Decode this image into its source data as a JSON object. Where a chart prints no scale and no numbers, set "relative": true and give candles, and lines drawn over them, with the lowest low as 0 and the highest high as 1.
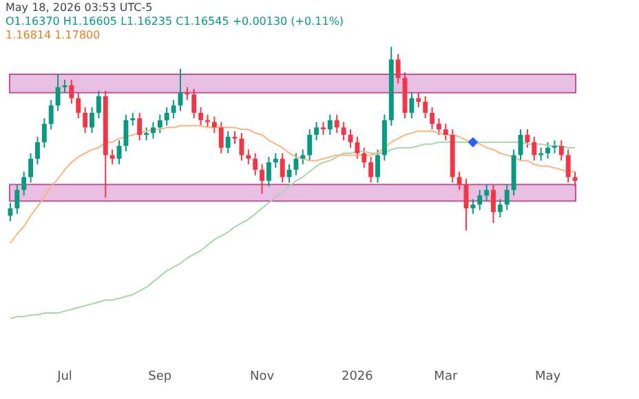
{
  "chart_data": {
    "type": "candlestick",
    "relative": true,
    "categories": [
      null,
      null,
      null,
      null,
      null,
      null,
      null,
      null,
      "Jul",
      null,
      null,
      null,
      null,
      null,
      null,
      null,
      null,
      null,
      null,
      null,
      null,
      null,
      "Sep",
      null,
      null,
      null,
      null,
      null,
      null,
      null,
      null,
      null,
      null,
      null,
      null,
      null,
      null,
      "Nov",
      null,
      null,
      null,
      null,
      null,
      null,
      null,
      null,
      null,
      null,
      null,
      null,
      null,
      "2026",
      null,
      null,
      null,
      null,
      null,
      null,
      null,
      null,
      null,
      null,
      null,
      null,
      "Mar",
      null,
      null,
      null,
      null,
      null,
      null,
      null,
      null,
      null,
      null,
      null,
      null,
      null,
      null,
      "May",
      null,
      null,
      null,
      null
    ],
    "ohlc": [
      [
        0.08,
        0.15,
        0.05,
        0.12
      ],
      [
        0.12,
        0.25,
        0.09,
        0.22
      ],
      [
        0.22,
        0.32,
        0.19,
        0.29
      ],
      [
        0.29,
        0.42,
        0.26,
        0.39
      ],
      [
        0.39,
        0.51,
        0.36,
        0.48
      ],
      [
        0.48,
        0.61,
        0.45,
        0.58
      ],
      [
        0.58,
        0.71,
        0.55,
        0.68
      ],
      [
        0.68,
        0.85,
        0.65,
        0.78
      ],
      [
        0.78,
        0.82,
        0.75,
        0.79
      ],
      [
        0.79,
        0.82,
        0.69,
        0.72
      ],
      [
        0.72,
        0.75,
        0.61,
        0.64
      ],
      [
        0.64,
        0.67,
        0.53,
        0.56
      ],
      [
        0.56,
        0.67,
        0.53,
        0.64
      ],
      [
        0.64,
        0.76,
        0.61,
        0.73
      ],
      [
        0.73,
        0.76,
        0.18,
        0.41
      ],
      [
        0.41,
        0.44,
        0.36,
        0.39
      ],
      [
        0.39,
        0.49,
        0.36,
        0.46
      ],
      [
        0.46,
        0.63,
        0.43,
        0.6
      ],
      [
        0.6,
        0.64,
        0.57,
        0.61
      ],
      [
        0.61,
        0.64,
        0.49,
        0.52
      ],
      [
        0.52,
        0.56,
        0.49,
        0.53
      ],
      [
        0.53,
        0.59,
        0.5,
        0.56
      ],
      [
        0.56,
        0.63,
        0.53,
        0.6
      ],
      [
        0.6,
        0.67,
        0.57,
        0.64
      ],
      [
        0.64,
        0.71,
        0.61,
        0.68
      ],
      [
        0.68,
        0.88,
        0.65,
        0.75
      ],
      [
        0.75,
        0.78,
        0.71,
        0.74
      ],
      [
        0.74,
        0.77,
        0.61,
        0.64
      ],
      [
        0.64,
        0.67,
        0.57,
        0.6
      ],
      [
        0.6,
        0.63,
        0.56,
        0.59
      ],
      [
        0.59,
        0.62,
        0.53,
        0.56
      ],
      [
        0.56,
        0.59,
        0.42,
        0.45
      ],
      [
        0.45,
        0.54,
        0.42,
        0.51
      ],
      [
        0.51,
        0.54,
        0.47,
        0.5
      ],
      [
        0.5,
        0.53,
        0.38,
        0.41
      ],
      [
        0.41,
        0.44,
        0.36,
        0.39
      ],
      [
        0.39,
        0.42,
        0.3,
        0.33
      ],
      [
        0.33,
        0.36,
        0.2,
        0.27
      ],
      [
        0.27,
        0.4,
        0.24,
        0.37
      ],
      [
        0.37,
        0.42,
        0.34,
        0.39
      ],
      [
        0.39,
        0.42,
        0.26,
        0.29
      ],
      [
        0.29,
        0.36,
        0.26,
        0.33
      ],
      [
        0.33,
        0.42,
        0.3,
        0.39
      ],
      [
        0.39,
        0.44,
        0.36,
        0.41
      ],
      [
        0.41,
        0.55,
        0.38,
        0.52
      ],
      [
        0.52,
        0.59,
        0.49,
        0.56
      ],
      [
        0.56,
        0.59,
        0.52,
        0.55
      ],
      [
        0.55,
        0.63,
        0.52,
        0.6
      ],
      [
        0.6,
        0.63,
        0.53,
        0.56
      ],
      [
        0.56,
        0.59,
        0.49,
        0.52
      ],
      [
        0.52,
        0.55,
        0.45,
        0.48
      ],
      [
        0.48,
        0.51,
        0.39,
        0.42
      ],
      [
        0.42,
        0.45,
        0.34,
        0.37
      ],
      [
        0.37,
        0.4,
        0.26,
        0.29
      ],
      [
        0.29,
        0.44,
        0.26,
        0.41
      ],
      [
        0.41,
        0.63,
        0.38,
        0.6
      ],
      [
        0.6,
        1.0,
        0.57,
        0.93
      ],
      [
        0.93,
        0.96,
        0.8,
        0.83
      ],
      [
        0.83,
        0.86,
        0.61,
        0.64
      ],
      [
        0.64,
        0.75,
        0.61,
        0.72
      ],
      [
        0.72,
        0.75,
        0.67,
        0.7
      ],
      [
        0.7,
        0.73,
        0.61,
        0.64
      ],
      [
        0.64,
        0.67,
        0.55,
        0.58
      ],
      [
        0.58,
        0.61,
        0.52,
        0.55
      ],
      [
        0.55,
        0.58,
        0.49,
        0.52
      ],
      [
        0.52,
        0.55,
        0.26,
        0.29
      ],
      [
        0.29,
        0.32,
        0.22,
        0.25
      ],
      [
        0.25,
        0.28,
        0.0,
        0.12
      ],
      [
        0.12,
        0.17,
        0.09,
        0.14
      ],
      [
        0.14,
        0.22,
        0.11,
        0.19
      ],
      [
        0.19,
        0.25,
        0.16,
        0.22
      ],
      [
        0.22,
        0.25,
        0.04,
        0.1
      ],
      [
        0.1,
        0.17,
        0.07,
        0.14
      ],
      [
        0.14,
        0.25,
        0.11,
        0.22
      ],
      [
        0.22,
        0.44,
        0.19,
        0.41
      ],
      [
        0.41,
        0.55,
        0.38,
        0.52
      ],
      [
        0.52,
        0.55,
        0.45,
        0.48
      ],
      [
        0.48,
        0.51,
        0.38,
        0.41
      ],
      [
        0.41,
        0.45,
        0.38,
        0.42
      ],
      [
        0.42,
        0.48,
        0.39,
        0.45
      ],
      [
        0.45,
        0.49,
        0.42,
        0.46
      ],
      [
        0.46,
        0.49,
        0.38,
        0.41
      ],
      [
        0.41,
        0.44,
        0.26,
        0.29
      ],
      [
        0.29,
        0.32,
        0.24,
        0.27
      ]
    ],
    "series": [
      {
        "type": "line",
        "color": "#ffb27a",
        "values": [
          -0.07,
          -0.02,
          0.02,
          0.08,
          0.13,
          0.18,
          0.24,
          0.28,
          0.33,
          0.37,
          0.4,
          0.42,
          0.44,
          0.45,
          0.48,
          0.48,
          0.5,
          0.51,
          0.52,
          0.53,
          0.54,
          0.55,
          0.55,
          0.56,
          0.56,
          0.57,
          0.57,
          0.57,
          0.57,
          0.56,
          0.56,
          0.56,
          0.56,
          0.56,
          0.55,
          0.55,
          0.53,
          0.52,
          0.49,
          0.47,
          0.45,
          0.42,
          0.4,
          0.39,
          0.38,
          0.38,
          0.39,
          0.4,
          0.41,
          0.41,
          0.41,
          0.41,
          0.41,
          0.41,
          0.42,
          0.45,
          0.48,
          0.5,
          0.52,
          0.53,
          0.54,
          0.54,
          0.54,
          0.53,
          0.52,
          0.52,
          0.51,
          0.49,
          0.48,
          0.47,
          0.45,
          0.44,
          0.42,
          0.41,
          0.4,
          0.38,
          0.38,
          0.36,
          0.35,
          0.35,
          0.34,
          0.33,
          0.32,
          0.32
        ]
      },
      {
        "type": "line",
        "color": "#a5d6a7",
        "values": [
          -0.48,
          -0.47,
          -0.47,
          -0.46,
          -0.46,
          -0.45,
          -0.45,
          -0.45,
          -0.44,
          -0.43,
          -0.42,
          -0.41,
          -0.4,
          -0.39,
          -0.38,
          -0.38,
          -0.37,
          -0.36,
          -0.35,
          -0.33,
          -0.31,
          -0.28,
          -0.25,
          -0.22,
          -0.2,
          -0.18,
          -0.15,
          -0.13,
          -0.11,
          -0.08,
          -0.05,
          -0.03,
          -0.01,
          0.02,
          0.04,
          0.06,
          0.09,
          0.12,
          0.15,
          0.18,
          0.21,
          0.24,
          0.27,
          0.29,
          0.32,
          0.35,
          0.37,
          0.38,
          0.4,
          0.42,
          0.42,
          0.43,
          0.43,
          0.42,
          0.42,
          0.42,
          0.44,
          0.45,
          0.45,
          0.45,
          0.46,
          0.47,
          0.47,
          0.48,
          0.48,
          0.48,
          0.48,
          0.48,
          0.48,
          0.48,
          0.48,
          0.48,
          0.48,
          0.48,
          0.48,
          0.48,
          0.47,
          0.47,
          0.47,
          0.46,
          0.46,
          0.46,
          0.45,
          0.45
        ]
      },
      {
        "type": "scatter",
        "color": "#2962ff",
        "marker": "diamond",
        "values": [
          null,
          null,
          null,
          null,
          null,
          null,
          null,
          null,
          null,
          null,
          null,
          null,
          null,
          null,
          null,
          null,
          null,
          null,
          null,
          null,
          null,
          null,
          null,
          null,
          null,
          null,
          null,
          null,
          null,
          null,
          null,
          null,
          null,
          null,
          null,
          null,
          null,
          null,
          null,
          null,
          null,
          null,
          null,
          null,
          null,
          null,
          null,
          null,
          null,
          null,
          null,
          null,
          null,
          null,
          null,
          null,
          null,
          null,
          null,
          null,
          null,
          null,
          null,
          null,
          null,
          null,
          null,
          null,
          0.48,
          null,
          null,
          null,
          null,
          null,
          null,
          null,
          null,
          null,
          null,
          null,
          null,
          null,
          null,
          null
        ]
      }
    ],
    "bands": [
      {
        "axis": "y",
        "from": 0.75,
        "to": 0.85,
        "color": "#e8bfe0"
      },
      {
        "axis": "y",
        "from": 0.16,
        "to": 0.25,
        "color": "#e8bfe0"
      }
    ],
    "annotations": [
      "May 18, 2026 03:53 UTC-5",
      "O1.16370 H1.16605 L1.16235 C1.16545 +0.00130 (+0.11%)",
      "1.16814 1.17800"
    ]
  }
}
